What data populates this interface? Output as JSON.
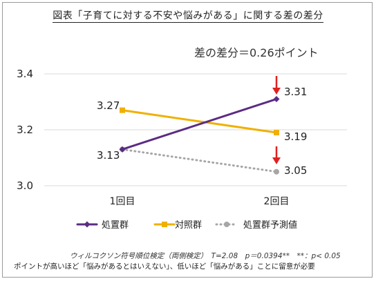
{
  "title": "図表「子育てに対する不安や悩みがある」に関する差の差分",
  "annotation": "差の差分＝0.26ポイント",
  "footnote_test": "ウィルコクソン符号順位検定（両側検定）　T=2.08　p＝0.0394**　**：p< 0.05",
  "footnote_note": "ポイントが高いほど「悩みがあるとはいえない」、低いほど「悩みがある」ことに留意が必要",
  "chart_data": {
    "type": "line",
    "categories": [
      "1回目",
      "2回目"
    ],
    "ylim": [
      3.0,
      3.4
    ],
    "yticks": [
      "3.0",
      "3.2",
      "3.4"
    ],
    "grid": true,
    "legend_position": "bottom",
    "series": [
      {
        "name": "処置群",
        "values": [
          3.13,
          3.31
        ],
        "labels": [
          "3.13",
          "3.31"
        ],
        "color": "#5b2c83",
        "marker": "diamond",
        "dash": "solid"
      },
      {
        "name": "対照群",
        "values": [
          3.27,
          3.19
        ],
        "labels": [
          "3.27",
          "3.19"
        ],
        "color": "#f0b000",
        "marker": "square",
        "dash": "solid"
      },
      {
        "name": "処置群予測値",
        "values": [
          3.13,
          3.05
        ],
        "labels": [
          "",
          "3.05"
        ],
        "color": "#a6a6a6",
        "marker": "circle",
        "dash": "dotted"
      }
    ],
    "arrows_color": "#e02020"
  }
}
